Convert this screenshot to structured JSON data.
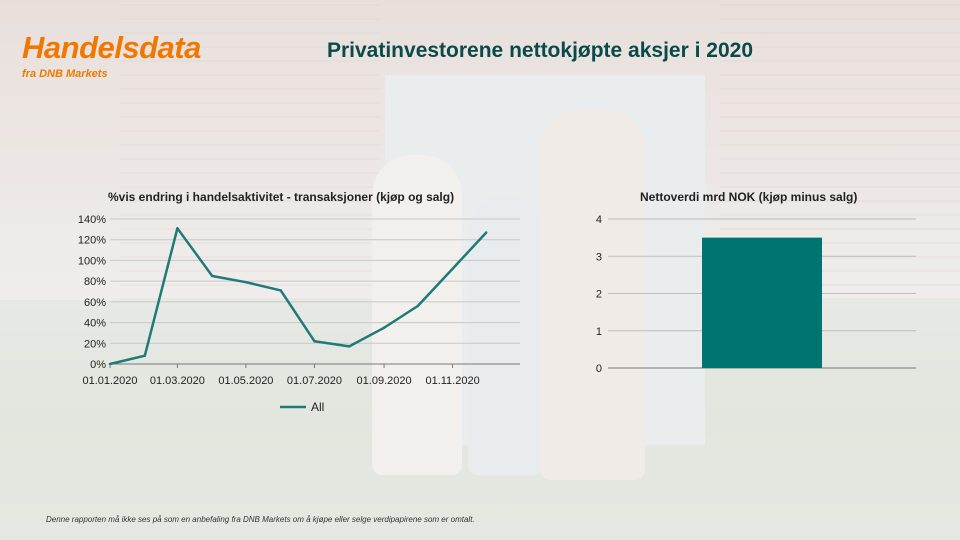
{
  "logo": {
    "name": "Handelsdata",
    "sub": "fra DNB Markets"
  },
  "title": "Privatinvestorene nettokjøpte aksjer i 2020",
  "footer": "Denne rapporten må ikke ses på som en anbefaling fra DNB Markets om å kjøpe eller selge verdipapirene som er omtalt.",
  "colors": {
    "brand_orange": "#f07800",
    "title_teal": "#0a4a4a",
    "series_teal": "#1f7a78",
    "bar_teal": "#007470"
  },
  "chart_data": [
    {
      "type": "line",
      "title": "%vis  endring i handelsaktivitet - transaksjoner (kjøp og salg)",
      "x_tick_labels": [
        "01.01.2020",
        "01.03.2020",
        "01.05.2020",
        "01.07.2020",
        "01.09.2020",
        "01.11.2020"
      ],
      "y_tick_labels": [
        "0%",
        "20%",
        "40%",
        "60%",
        "80%",
        "100%",
        "120%",
        "140%"
      ],
      "ylim": [
        0,
        140
      ],
      "grid": true,
      "legend": "bottom",
      "series": [
        {
          "name": "All",
          "x": [
            "2020-01-01",
            "2020-02-01",
            "2020-03-01",
            "2020-04-01",
            "2020-05-01",
            "2020-06-01",
            "2020-07-01",
            "2020-08-01",
            "2020-09-01",
            "2020-10-01",
            "2020-11-01",
            "2020-12-01"
          ],
          "y": [
            0,
            8,
            131,
            85,
            79,
            71,
            22,
            17,
            35,
            56,
            92,
            127
          ]
        }
      ]
    },
    {
      "type": "bar",
      "title": "Nettoverdi  mrd NOK (kjøp minus salg)",
      "categories": [
        ""
      ],
      "values": [
        3.5
      ],
      "y_tick_labels": [
        "0",
        "1",
        "2",
        "3",
        "4"
      ],
      "ylim": [
        0,
        4
      ],
      "grid": true
    }
  ]
}
